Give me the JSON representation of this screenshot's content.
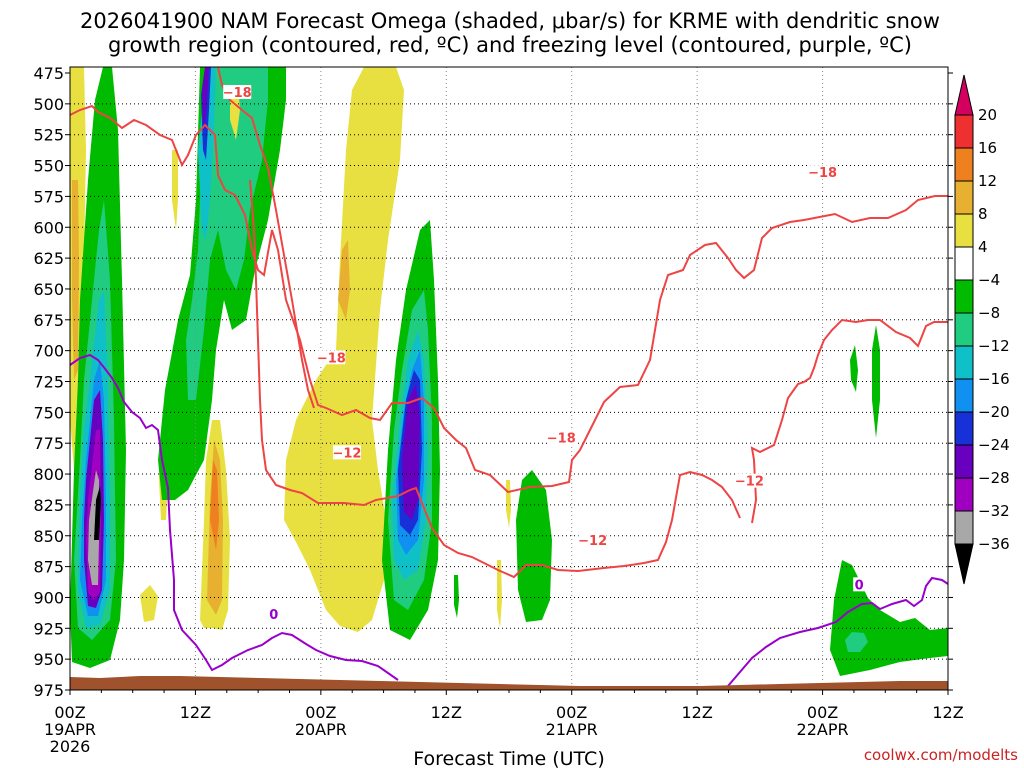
{
  "chart_data": {
    "type": "heatmap",
    "title_line1": "2026041900 NAM Forecast Omega (shaded, μbar/s) for KRME with dendritic snow",
    "title_line2": "growth region (contoured, red, ºC) and freezing level (contoured, purple, ºC)",
    "xlabel": "Forecast Time (UTC)",
    "credit": "coolwx.com/modelts",
    "x_ticks": [
      {
        "hour": 0,
        "line1": "00Z",
        "line2": "19APR",
        "line3": "2026"
      },
      {
        "hour": 12,
        "line1": "12Z"
      },
      {
        "hour": 24,
        "line1": "00Z",
        "line2": "20APR"
      },
      {
        "hour": 36,
        "line1": "12Z"
      },
      {
        "hour": 48,
        "line1": "00Z",
        "line2": "21APR"
      },
      {
        "hour": 60,
        "line1": "12Z"
      },
      {
        "hour": 72,
        "line1": "00Z",
        "line2": "22APR"
      },
      {
        "hour": 84,
        "line1": "12Z"
      }
    ],
    "xlim_hours": [
      0,
      84
    ],
    "y_ticks": [
      "475",
      "500",
      "525",
      "550",
      "575",
      "600",
      "625",
      "650",
      "675",
      "700",
      "725",
      "750",
      "775",
      "800",
      "825",
      "850",
      "875",
      "900",
      "925",
      "950",
      "975"
    ],
    "ylim_mb": [
      975,
      475
    ],
    "grid": true,
    "colorbar": {
      "labels": [
        "20",
        "16",
        "12",
        "8",
        "4",
        "−4",
        "−8",
        "−12",
        "−16",
        "−20",
        "−24",
        "−28",
        "−32",
        "−36"
      ],
      "colors": [
        "#d40060",
        "#ef3030",
        "#ef8020",
        "#e8b030",
        "#e8e040",
        "#ffffff",
        "#00bb00",
        "#20cc80",
        "#10c0c8",
        "#1090f0",
        "#1830d8",
        "#6800c0",
        "#a000c0",
        "#a8a8a8"
      ]
    },
    "terrain": {
      "color": "#a0522d",
      "surface_mb": 962
    },
    "contours": {
      "dgz_color": "#ee4444",
      "freezing_color": "#9900cc",
      "labels": [
        {
          "text": "−18",
          "hour": 16,
          "mb": 492,
          "kind": "dgz"
        },
        {
          "text": "−18",
          "hour": 25,
          "mb": 707,
          "kind": "dgz"
        },
        {
          "text": "−12",
          "hour": 26.5,
          "mb": 784,
          "kind": "dgz"
        },
        {
          "text": "−18",
          "hour": 47,
          "mb": 772,
          "kind": "dgz"
        },
        {
          "text": "−12",
          "hour": 50,
          "mb": 855,
          "kind": "dgz"
        },
        {
          "text": "−12",
          "hour": 65,
          "mb": 807,
          "kind": "dgz"
        },
        {
          "text": "−18",
          "hour": 72,
          "mb": 557,
          "kind": "dgz"
        },
        {
          "text": "0",
          "hour": 19.5,
          "mb": 915,
          "kind": "freezing"
        },
        {
          "text": "0",
          "hour": 75.5,
          "mb": 891,
          "kind": "freezing"
        }
      ]
    }
  }
}
